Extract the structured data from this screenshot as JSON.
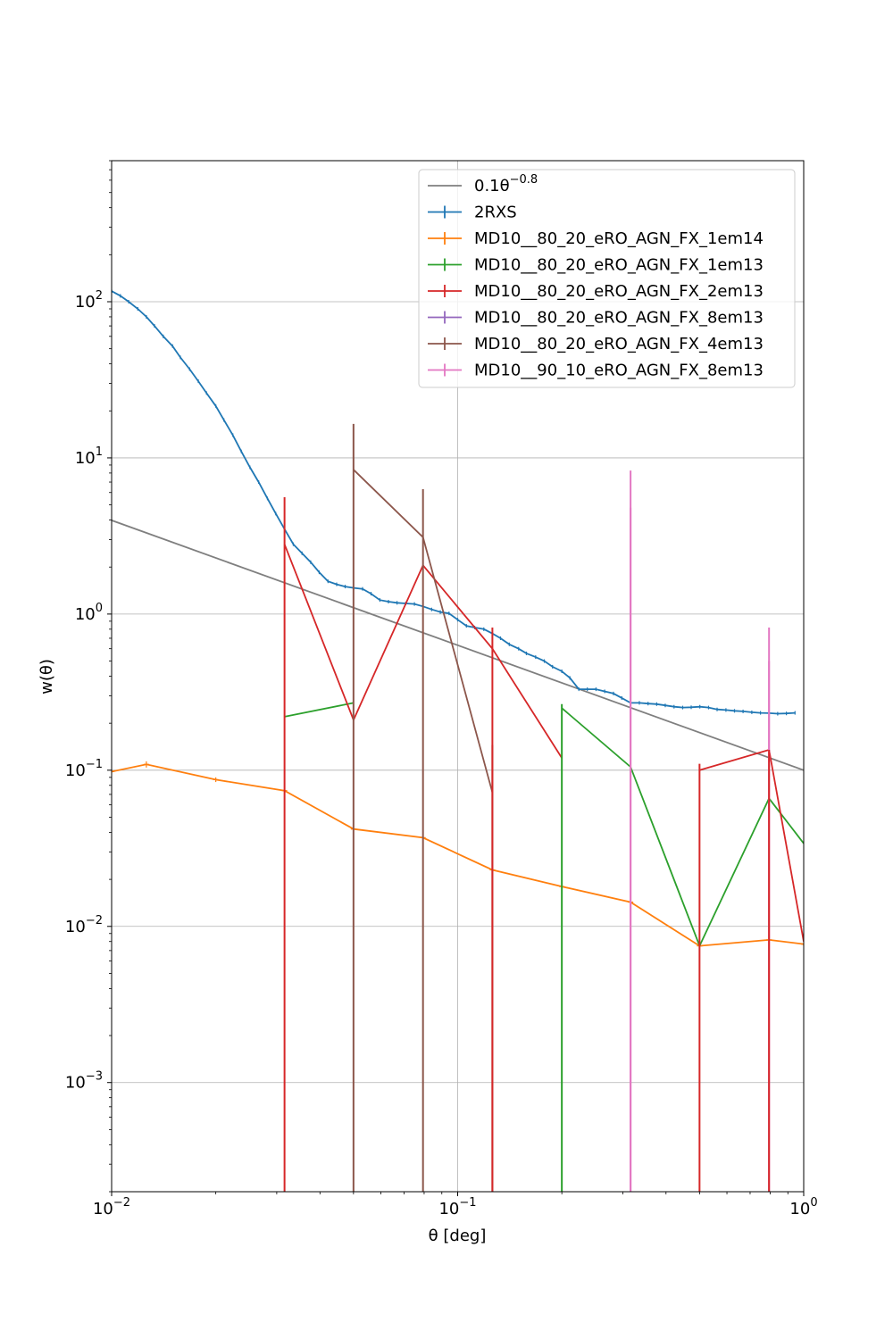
{
  "chart_data": {
    "type": "line",
    "title": "",
    "xlabel": "θ [deg]",
    "ylabel": "w(θ)",
    "xscale": "log",
    "yscale": "log",
    "xlim": [
      0.01,
      1
    ],
    "ylim": [
      0.0002,
      800
    ],
    "grid": true,
    "legend_position": "top-right",
    "x_ticks": [
      {
        "value": 0.01,
        "base": "10",
        "exp": "−2"
      },
      {
        "value": 0.1,
        "base": "10",
        "exp": "−1"
      },
      {
        "value": 1,
        "base": "10",
        "exp": "0"
      }
    ],
    "y_ticks": [
      {
        "value": 0.001,
        "base": "10",
        "exp": "−3"
      },
      {
        "value": 0.01,
        "base": "10",
        "exp": "−2"
      },
      {
        "value": 0.1,
        "base": "10",
        "exp": "−1"
      },
      {
        "value": 1,
        "base": "10",
        "exp": "0"
      },
      {
        "value": 10,
        "base": "10",
        "exp": "1"
      },
      {
        "value": 100,
        "base": "10",
        "exp": "2"
      }
    ],
    "series": [
      {
        "name": "0.1θ^{-0.8}",
        "legend_main": "0.1θ",
        "legend_sup": "−0.8",
        "color": "#7f7f7f",
        "errorbars": false,
        "x": [
          0.01,
          1
        ],
        "y": [
          3.98,
          0.1
        ]
      },
      {
        "name": "2RXS",
        "color": "#1f77b4",
        "errorbars": true,
        "x": [
          0.01,
          0.0106,
          0.0112,
          0.0119,
          0.0126,
          0.0133,
          0.0141,
          0.015,
          0.0158,
          0.0168,
          0.0178,
          0.0188,
          0.02,
          0.0211,
          0.0224,
          0.0237,
          0.0251,
          0.0266,
          0.0282,
          0.0298,
          0.0316,
          0.0335,
          0.0355,
          0.0376,
          0.0398,
          0.0422,
          0.0447,
          0.0473,
          0.0501,
          0.0531,
          0.0562,
          0.0596,
          0.0631,
          0.0668,
          0.0708,
          0.075,
          0.0794,
          0.0841,
          0.0891,
          0.0944,
          0.1,
          0.106,
          0.112,
          0.119,
          0.126,
          0.133,
          0.141,
          0.15,
          0.158,
          0.168,
          0.178,
          0.188,
          0.2,
          0.211,
          0.224,
          0.237,
          0.251,
          0.266,
          0.282,
          0.298,
          0.316,
          0.335,
          0.355,
          0.376,
          0.398,
          0.422,
          0.447,
          0.473,
          0.501,
          0.531,
          0.562,
          0.596,
          0.631,
          0.668,
          0.708,
          0.75,
          0.794,
          0.841,
          0.891,
          0.944
        ],
        "y": [
          117,
          109,
          100,
          90,
          80,
          70,
          60,
          52,
          44,
          37,
          31,
          26,
          21.5,
          17.5,
          14,
          11,
          8.7,
          7,
          5.5,
          4.4,
          3.5,
          2.8,
          2.45,
          2.15,
          1.85,
          1.62,
          1.55,
          1.5,
          1.47,
          1.45,
          1.35,
          1.23,
          1.2,
          1.18,
          1.17,
          1.16,
          1.12,
          1.07,
          1.03,
          1.01,
          0.92,
          0.84,
          0.82,
          0.8,
          0.75,
          0.7,
          0.64,
          0.6,
          0.56,
          0.53,
          0.5,
          0.46,
          0.43,
          0.39,
          0.33,
          0.33,
          0.33,
          0.32,
          0.31,
          0.29,
          0.27,
          0.27,
          0.267,
          0.265,
          0.26,
          0.255,
          0.252,
          0.253,
          0.255,
          0.252,
          0.245,
          0.243,
          0.24,
          0.238,
          0.235,
          0.233,
          0.232,
          0.23,
          0.231,
          0.233
        ]
      },
      {
        "name": "MD10__80_20_eRO_AGN_FX_1em14",
        "color": "#ff7f0e",
        "errorbars": true,
        "x": [
          0.01,
          0.0126,
          0.02,
          0.0316,
          0.05,
          0.0794,
          0.126,
          0.2,
          0.316,
          0.5,
          0.794,
          1.0
        ],
        "y": [
          0.098,
          0.109,
          0.087,
          0.074,
          0.042,
          0.037,
          0.023,
          0.018,
          0.0143,
          0.0075,
          0.0082,
          0.0077
        ],
        "err": [
          0.002,
          0.005,
          0.003,
          0.002,
          0.001,
          0.001,
          0.0005,
          0.0004,
          0.0003,
          0.0002,
          0.0002,
          0.0002
        ]
      },
      {
        "name": "MD10__80_20_eRO_AGN_FX_1em13",
        "color": "#2ca02c",
        "errorbars": true,
        "x": [
          0.0316,
          0.05,
          null,
          0.2,
          0.316,
          0.5,
          0.794,
          1.0
        ],
        "y": [
          0.22,
          0.27,
          null,
          0.25,
          0.105,
          0.0075,
          0.066,
          0.034
        ],
        "err": [
          0.22,
          0.27,
          null,
          0.017,
          0.105,
          0.0075,
          0.066,
          0.034
        ]
      },
      {
        "name": "MD10__80_20_eRO_AGN_FX_2em13",
        "color": "#d62728",
        "errorbars": true,
        "x": [
          0.0316,
          0.05,
          0.0794,
          0.126,
          0.2,
          null,
          0.5,
          0.794,
          1.0
        ],
        "y": [
          2.8,
          0.21,
          2.05,
          0.6,
          0.12,
          null,
          0.1,
          0.135,
          0.008
        ],
        "err": [
          2.8,
          0.21,
          2.05,
          0.2,
          0.12,
          null,
          0.1,
          0.135,
          0.008
        ]
      },
      {
        "name": "MD10__80_20_eRO_AGN_FX_8em13",
        "color": "#9467bd",
        "errorbars": true,
        "x": [
          0.316,
          0.794
        ],
        "y": [
          0.3,
          0.3
        ],
        "err": [
          0.3,
          0.3
        ]
      },
      {
        "name": "MD10__80_20_eRO_AGN_FX_4em13",
        "color": "#8c564b",
        "errorbars": true,
        "x": [
          0.05,
          0.0794,
          0.126
        ],
        "y": [
          8.4,
          3.1,
          0.072
        ],
        "err": [
          8.4,
          3.1,
          0.072
        ]
      },
      {
        "name": "MD10__90_10_eRO_AGN_FX_8em13",
        "color": "#e377c2",
        "errorbars": true,
        "x": [
          0.316,
          0.794
        ],
        "y": [
          0.3,
          0.3
        ],
        "err": [
          0.3,
          0.3
        ]
      }
    ],
    "extra_errorbars": [
      {
        "series": 5,
        "x": 0.316,
        "top": 8.3,
        "color": "#e377c2"
      },
      {
        "series": 5,
        "x": 0.794,
        "top": 0.82,
        "color": "#e377c2"
      },
      {
        "series": 5,
        "x": 0.316,
        "top": 4.8,
        "color": "#e377c2"
      },
      {
        "series": 5,
        "x": 0.794,
        "top": 0.5,
        "color": "#e377c2"
      },
      {
        "series": 4,
        "x": 0.05,
        "top": 16.5,
        "color": "#8c564b"
      },
      {
        "series": 4,
        "x": 0.0794,
        "top": 6.3,
        "color": "#8c564b"
      },
      {
        "series": 4,
        "x": 0.126,
        "top": 0.145,
        "color": "#8c564b"
      },
      {
        "series": 3,
        "x": 0.0316,
        "top": 5.6,
        "color": "#d62728"
      },
      {
        "series": 3,
        "x": 0.126,
        "top": 0.82,
        "color": "#d62728"
      },
      {
        "series": 3,
        "x": 0.5,
        "top": 0.11,
        "color": "#d62728"
      },
      {
        "series": 3,
        "x": 0.794,
        "top": 0.135,
        "color": "#d62728"
      },
      {
        "series": 2,
        "x": 0.2,
        "top": 0.265,
        "color": "#2ca02c"
      }
    ]
  }
}
